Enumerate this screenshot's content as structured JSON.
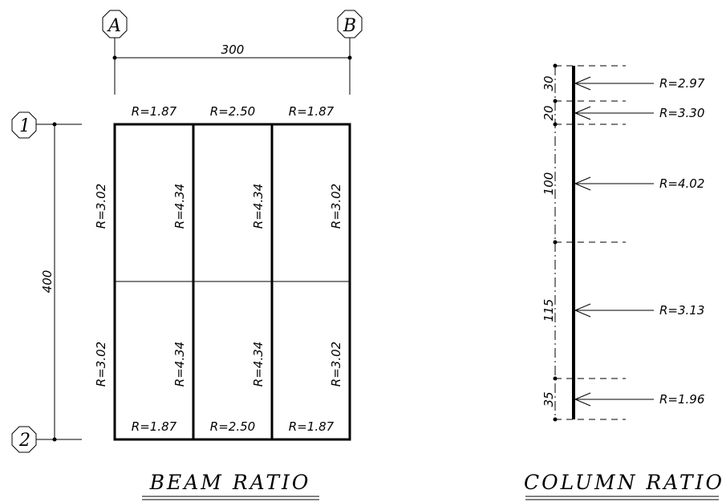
{
  "grid_axes": {
    "columns": [
      "A",
      "B"
    ],
    "rows": [
      "1",
      "2"
    ]
  },
  "beam_plan": {
    "span_x": "300",
    "span_y": "400",
    "top_ratios": [
      "R=1.87",
      "R=2.50",
      "R=1.87"
    ],
    "bottom_ratios": [
      "R=1.87",
      "R=2.50",
      "R=1.87"
    ],
    "vertical_ratios_upper": [
      "R=3.02",
      "R=4.34",
      "R=4.34",
      "R=3.02"
    ],
    "vertical_ratios_lower": [
      "R=3.02",
      "R=4.34",
      "R=4.34",
      "R=3.02"
    ],
    "title": "BEAM RATIO"
  },
  "column_profile": {
    "segments": [
      "30",
      "20",
      "100",
      "115",
      "35"
    ],
    "ratios": [
      "R=2.97",
      "R=3.30",
      "R=4.02",
      "R=3.13",
      "R=1.96"
    ],
    "title": "COLUMN RATIO"
  }
}
